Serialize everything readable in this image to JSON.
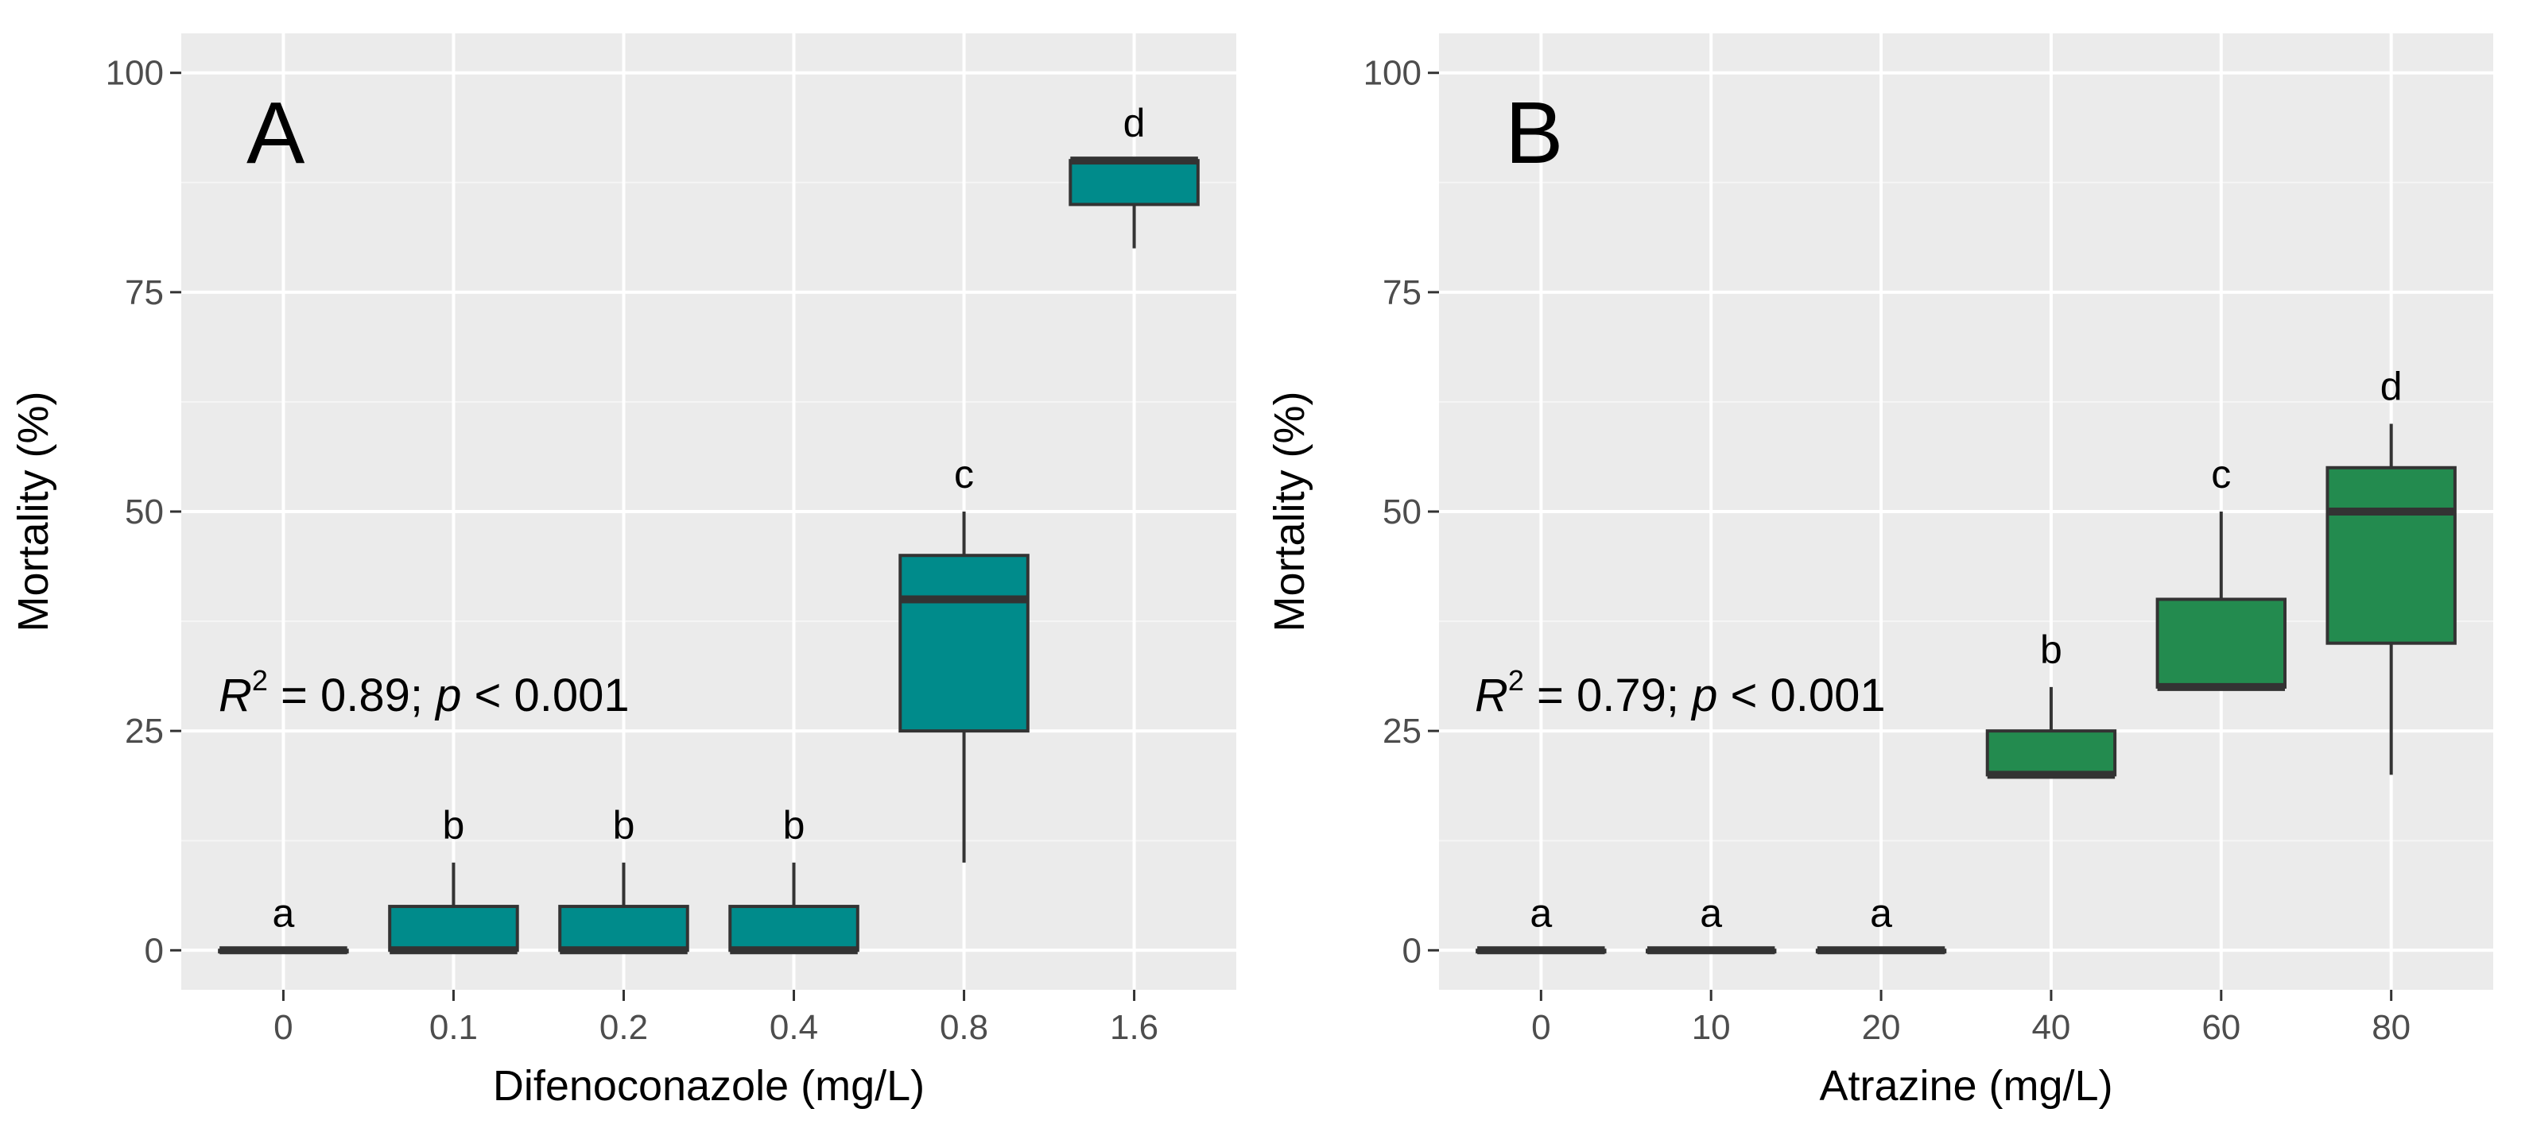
{
  "chart_data": [
    {
      "type": "box",
      "panel_label": "A",
      "xlabel": "Difenoconazole (mg/L)",
      "ylabel": "Mortality (%)",
      "ylim": [
        0,
        100
      ],
      "y_ticks": [
        0,
        25,
        50,
        75,
        100
      ],
      "grid": true,
      "fill_color": "#008b8b",
      "annotation": {
        "r2_prefix": "R",
        "r2_sup": "2",
        "r2_text": " = 0.89;  ",
        "p_italic": "p",
        "p_text": " < 0.001"
      },
      "categories": [
        "0",
        "0.1",
        "0.2",
        "0.4",
        "0.8",
        "1.6"
      ],
      "groups": [
        "a",
        "b",
        "b",
        "b",
        "c",
        "d"
      ],
      "boxes": [
        {
          "low": 0,
          "q1": 0,
          "median": 0,
          "q3": 0,
          "high": 0
        },
        {
          "low": 0,
          "q1": 0,
          "median": 0,
          "q3": 5,
          "high": 10
        },
        {
          "low": 0,
          "q1": 0,
          "median": 0,
          "q3": 5,
          "high": 10
        },
        {
          "low": 0,
          "q1": 0,
          "median": 0,
          "q3": 5,
          "high": 10
        },
        {
          "low": 10,
          "q1": 25,
          "median": 40,
          "q3": 45,
          "high": 50
        },
        {
          "low": 80,
          "q1": 85,
          "median": 90,
          "q3": 90,
          "high": 90
        }
      ]
    },
    {
      "type": "box",
      "panel_label": "B",
      "xlabel": "Atrazine (mg/L)",
      "ylabel": "Mortality (%)",
      "ylim": [
        0,
        100
      ],
      "y_ticks": [
        0,
        25,
        50,
        75,
        100
      ],
      "grid": true,
      "fill_color": "#238b4f",
      "annotation": {
        "r2_prefix": "R",
        "r2_sup": "2",
        "r2_text": " = 0.79;  ",
        "p_italic": "p",
        "p_text": " < 0.001"
      },
      "categories": [
        "0",
        "10",
        "20",
        "40",
        "60",
        "80"
      ],
      "groups": [
        "a",
        "a",
        "a",
        "b",
        "c",
        "d"
      ],
      "boxes": [
        {
          "low": 0,
          "q1": 0,
          "median": 0,
          "q3": 0,
          "high": 0
        },
        {
          "low": 0,
          "q1": 0,
          "median": 0,
          "q3": 0,
          "high": 0
        },
        {
          "low": 0,
          "q1": 0,
          "median": 0,
          "q3": 0,
          "high": 0
        },
        {
          "low": 20,
          "q1": 20,
          "median": 20,
          "q3": 25,
          "high": 30
        },
        {
          "low": 30,
          "q1": 30,
          "median": 30,
          "q3": 40,
          "high": 50
        },
        {
          "low": 20,
          "q1": 35,
          "median": 50,
          "q3": 55,
          "high": 60
        }
      ]
    }
  ]
}
